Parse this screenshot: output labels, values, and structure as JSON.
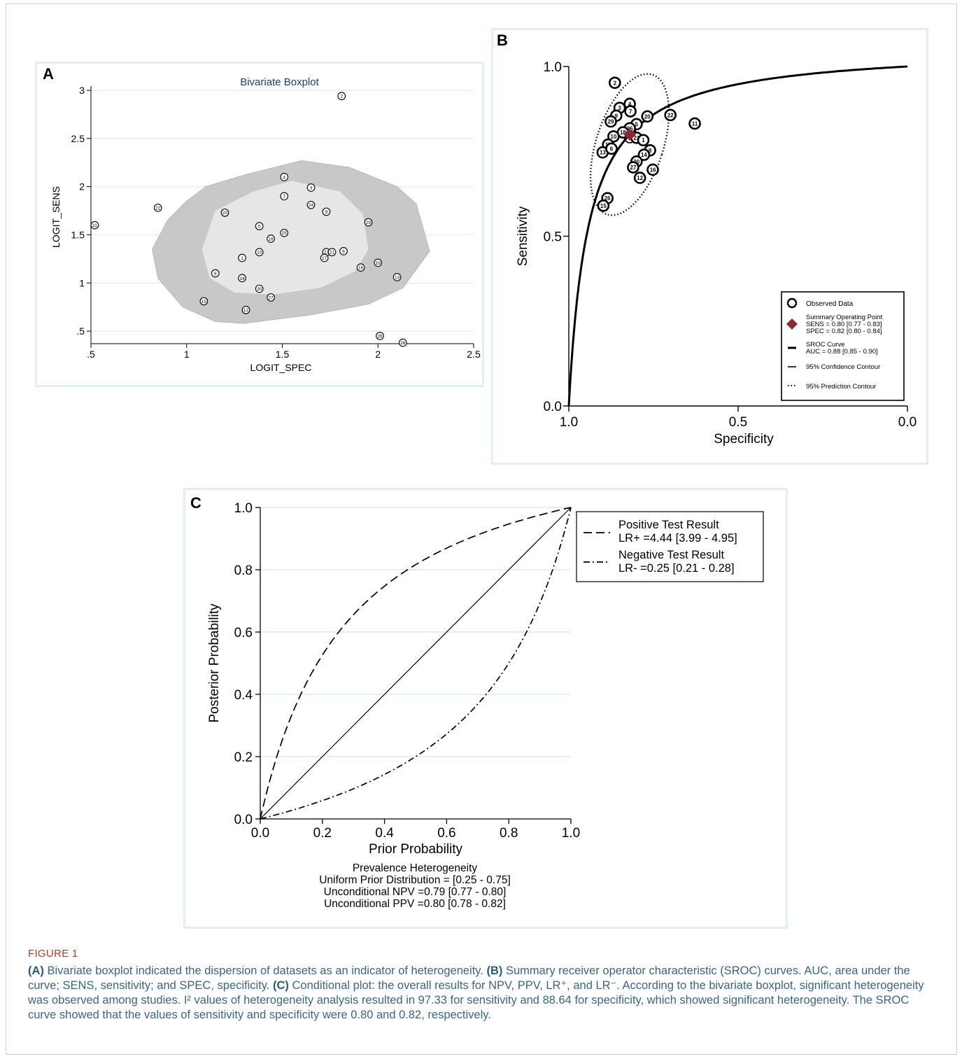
{
  "panels": {
    "a": {
      "letter": "A"
    },
    "b": {
      "letter": "B"
    },
    "c": {
      "letter": "C"
    }
  },
  "chart_data": [
    {
      "id": "A",
      "type": "scatter",
      "title": "Bivariate Boxplot",
      "xlabel": "LOGIT_SPEC",
      "ylabel": "LOGIT_SENS",
      "xlim": [
        0.5,
        2.5
      ],
      "ylim": [
        0.37,
        3.0
      ],
      "xticks": [
        0.5,
        1,
        1.5,
        2,
        2.5
      ],
      "xtick_labels": [
        ".5",
        "1",
        "1.5",
        "2",
        "2.5"
      ],
      "yticks": [
        0.5,
        1,
        1.5,
        2,
        2.5,
        3
      ],
      "ytick_labels": [
        ".5",
        "1",
        "1.5",
        "2",
        "2.5",
        "3"
      ],
      "grid": true,
      "colors": {
        "outer_region": "#c8c8c8",
        "inner_region": "#e6e6e6",
        "grid": "#e3efef",
        "title": "#1f3a6e"
      },
      "outer_envelope": [
        [
          1.1,
          2.0
        ],
        [
          1.3,
          2.12
        ],
        [
          1.6,
          2.27
        ],
        [
          1.85,
          2.2
        ],
        [
          2.1,
          2.0
        ],
        [
          2.2,
          1.82
        ],
        [
          2.27,
          1.33
        ],
        [
          2.13,
          0.95
        ],
        [
          1.95,
          0.78
        ],
        [
          1.65,
          0.67
        ],
        [
          1.3,
          0.58
        ],
        [
          1.15,
          0.6
        ],
        [
          0.98,
          0.75
        ],
        [
          0.85,
          1.05
        ],
        [
          0.82,
          1.35
        ],
        [
          0.9,
          1.65
        ],
        [
          1.0,
          1.85
        ]
      ],
      "inner_envelope": [
        [
          1.15,
          1.75
        ],
        [
          1.35,
          1.95
        ],
        [
          1.55,
          2.06
        ],
        [
          1.8,
          1.95
        ],
        [
          1.92,
          1.72
        ],
        [
          1.95,
          1.35
        ],
        [
          1.88,
          1.12
        ],
        [
          1.7,
          0.95
        ],
        [
          1.45,
          0.88
        ],
        [
          1.25,
          0.9
        ],
        [
          1.12,
          1.05
        ],
        [
          1.08,
          1.35
        ]
      ],
      "points": [
        {
          "label": "2",
          "x": 1.81,
          "y": 2.94
        },
        {
          "label": "11",
          "x": 0.52,
          "y": 1.6
        },
        {
          "label": "22",
          "x": 0.85,
          "y": 1.78
        },
        {
          "label": "20",
          "x": 1.2,
          "y": 1.73
        },
        {
          "label": "4",
          "x": 1.51,
          "y": 2.1
        },
        {
          "label": "7",
          "x": 1.51,
          "y": 1.9
        },
        {
          "label": "3",
          "x": 1.65,
          "y": 1.99
        },
        {
          "label": "24",
          "x": 1.65,
          "y": 1.81
        },
        {
          "label": "9",
          "x": 1.73,
          "y": 1.74
        },
        {
          "label": "29",
          "x": 1.95,
          "y": 1.63
        },
        {
          "label": "5",
          "x": 1.38,
          "y": 1.59
        },
        {
          "label": "25",
          "x": 1.51,
          "y": 1.52
        },
        {
          "label": "18",
          "x": 1.44,
          "y": 1.46
        },
        {
          "label": "10",
          "x": 1.38,
          "y": 1.32
        },
        {
          "label": "1",
          "x": 1.29,
          "y": 1.26
        },
        {
          "label": "23",
          "x": 1.73,
          "y": 1.32
        },
        {
          "label": "6",
          "x": 1.82,
          "y": 1.33
        },
        {
          "label": "17",
          "x": 1.72,
          "y": 1.26
        },
        {
          "label": "21",
          "x": 1.76,
          "y": 1.32
        },
        {
          "label": "19",
          "x": 2.0,
          "y": 1.21
        },
        {
          "label": "16",
          "x": 1.91,
          "y": 1.16
        },
        {
          "label": "13",
          "x": 2.1,
          "y": 1.06
        },
        {
          "label": "8",
          "x": 1.15,
          "y": 1.1
        },
        {
          "label": "14",
          "x": 1.29,
          "y": 1.05
        },
        {
          "label": "30",
          "x": 1.38,
          "y": 0.94
        },
        {
          "label": "27",
          "x": 1.44,
          "y": 0.85
        },
        {
          "label": "15",
          "x": 1.09,
          "y": 0.81
        },
        {
          "label": "12",
          "x": 1.31,
          "y": 0.72
        },
        {
          "label": "26",
          "x": 2.01,
          "y": 0.45
        },
        {
          "label": "28",
          "x": 2.13,
          "y": 0.38
        }
      ]
    },
    {
      "id": "B",
      "type": "scatter",
      "xlabel": "Specificity",
      "ylabel": "Sensitivity",
      "x_reversed": true,
      "xlim": [
        1.0,
        0.0
      ],
      "ylim": [
        0.0,
        1.0
      ],
      "xtick_labels": [
        "1.0",
        "0.5",
        "0.0"
      ],
      "ytick_labels": [
        "0.0",
        "0.5",
        "1.0"
      ],
      "grid": false,
      "colors": {
        "curve": "#000000",
        "summary_point": "#8b2a33"
      },
      "summary_point": {
        "specificity": 0.82,
        "sensitivity": 0.8
      },
      "sroc_auc": 0.88,
      "points": [
        {
          "label": "2",
          "spec": 0.864,
          "sens": 0.952
        },
        {
          "label": "4",
          "spec": 0.82,
          "sens": 0.89
        },
        {
          "label": "3",
          "spec": 0.85,
          "sens": 0.878
        },
        {
          "label": "7",
          "spec": 0.818,
          "sens": 0.868
        },
        {
          "label": "9",
          "spec": 0.86,
          "sens": 0.855
        },
        {
          "label": "20",
          "spec": 0.768,
          "sens": 0.853
        },
        {
          "label": "29",
          "spec": 0.876,
          "sens": 0.838
        },
        {
          "label": "22",
          "spec": 0.7,
          "sens": 0.857
        },
        {
          "label": "11",
          "spec": 0.628,
          "sens": 0.832
        },
        {
          "label": "5",
          "spec": 0.8,
          "sens": 0.83
        },
        {
          "label": "25",
          "spec": 0.82,
          "sens": 0.818
        },
        {
          "label": "18",
          "spec": 0.84,
          "sens": 0.806
        },
        {
          "label": "10",
          "spec": 0.868,
          "sens": 0.794
        },
        {
          "label": "21",
          "spec": 0.8,
          "sens": 0.79
        },
        {
          "label": "1",
          "spec": 0.78,
          "sens": 0.783
        },
        {
          "label": "19",
          "spec": 0.884,
          "sens": 0.77
        },
        {
          "label": "13",
          "spec": 0.9,
          "sens": 0.747
        },
        {
          "label": "6",
          "spec": 0.874,
          "sens": 0.758
        },
        {
          "label": "8",
          "spec": 0.76,
          "sens": 0.753
        },
        {
          "label": "14",
          "spec": 0.778,
          "sens": 0.74
        },
        {
          "label": "30",
          "spec": 0.8,
          "sens": 0.72
        },
        {
          "label": "27",
          "spec": 0.81,
          "sens": 0.703
        },
        {
          "label": "16",
          "spec": 0.752,
          "sens": 0.696
        },
        {
          "label": "12",
          "spec": 0.79,
          "sens": 0.672
        },
        {
          "label": "26",
          "spec": 0.886,
          "sens": 0.612
        },
        {
          "label": "15",
          "spec": 0.898,
          "sens": 0.59
        }
      ],
      "legend": {
        "position": "bottom-right",
        "observed": "Observed Data",
        "summary_title": "Summary Operating Point",
        "summary_sens": "SENS = 0.80 [0.77 - 0.83]",
        "summary_spec": "SPEC = 0.82 [0.80 - 0.84]",
        "sroc_title": "SROC Curve",
        "sroc_auc": "AUC = 0.88 [0.85 - 0.90]",
        "confidence": "95% Confidence Contour",
        "prediction": "95% Prediction Contour"
      }
    },
    {
      "id": "C",
      "type": "line",
      "xlabel": "Prior Probability",
      "ylabel": "Posterior Probability",
      "xlim": [
        0,
        1
      ],
      "ylim": [
        0,
        1
      ],
      "ticks": [
        0.0,
        0.2,
        0.4,
        0.6,
        0.8,
        1.0
      ],
      "tick_labels": [
        "0.0",
        "0.2",
        "0.4",
        "0.6",
        "0.8",
        "1.0"
      ],
      "grid": true,
      "colors": {
        "grid": "#dcebec",
        "line": "#000000"
      },
      "series": [
        {
          "name": "Positive Test Result",
          "lr": 4.44,
          "style": "dashed"
        },
        {
          "name": "Negative Test Result",
          "lr": 0.25,
          "style": "dash-dot"
        }
      ],
      "legend": {
        "position": "top-right",
        "pos_title": "Positive Test Result",
        "pos_value": "LR+ =4.44 [3.99 - 4.95]",
        "neg_title": "Negative Test Result",
        "neg_value": "LR- =0.25 [0.21 - 0.28]"
      },
      "notes": {
        "line1": "Prevalence Heterogeneity",
        "line2": "Uniform Prior Distribution = [0.25 - 0.75]",
        "line3": "Unconditional NPV =0.79 [0.77 - 0.80]",
        "line4": "Unconditional PPV =0.80 [0.78 - 0.82]"
      }
    }
  ],
  "caption": {
    "figure_label": "FIGURE 1",
    "a_label": "(A)",
    "a_text": " Bivariate boxplot indicated the dispersion of datasets as an indicator of heterogeneity. ",
    "b_label": "(B)",
    "b_text": " Summary receiver operator characteristic (SROC) curves. AUC, area under the curve; SENS, sensitivity; and SPEC, specificity. ",
    "c_label": "(C)",
    "c_text": " Conditional plot: the overall results for NPV, PPV, LR⁺, and LR⁻. According to the bivariate boxplot, significant heterogeneity was observed among studies. I² values of heterogeneity analysis resulted in 97.33 for sensitivity and 88.64 for specificity, which showed significant heterogeneity. The SROC curve showed that the values of sensitivity and specificity were 0.80 and 0.82, respectively."
  }
}
